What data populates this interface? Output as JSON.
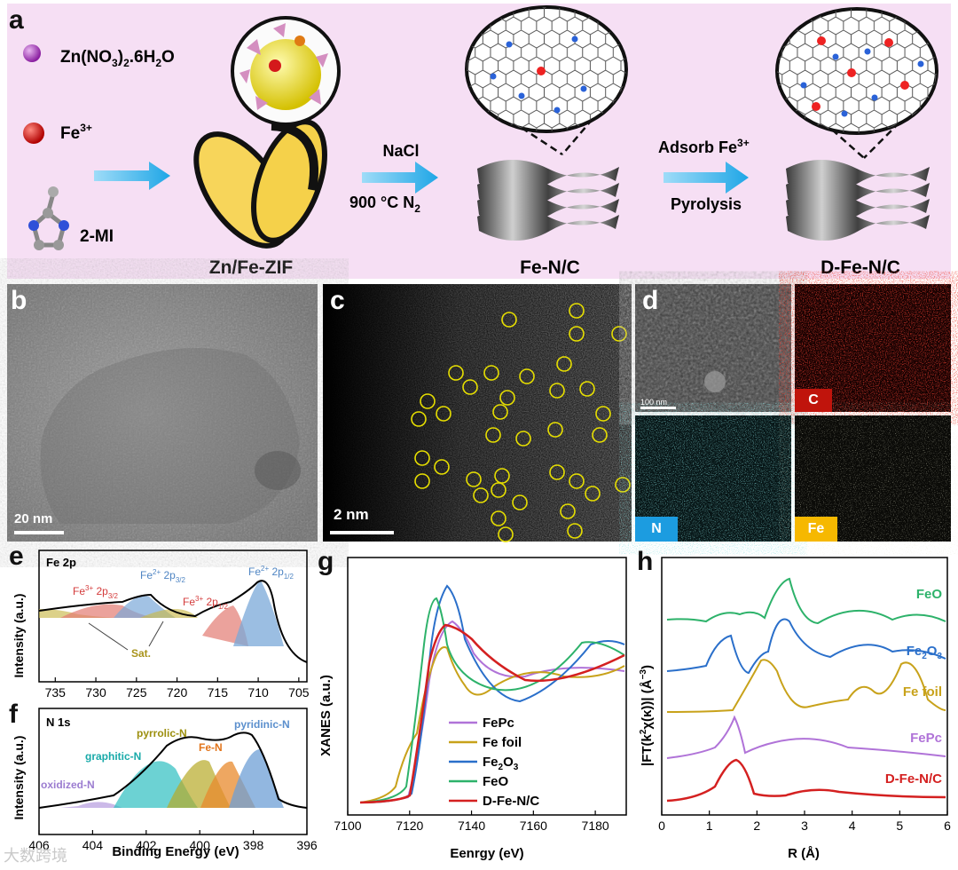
{
  "panel_a": {
    "label": "a",
    "reagents": [
      "Zn(NO3)2.6H2O",
      "Fe3+",
      "2-MI"
    ],
    "step1_conditions": [
      "NaCl",
      "900 °C  N2"
    ],
    "step2_conditions": [
      "Adsorb Fe3+",
      "Pyrolysis"
    ],
    "products": [
      "Zn/Fe-ZIF",
      "Fe-N/C",
      "D-Fe-N/C"
    ]
  },
  "panel_b": {
    "label": "b",
    "scalebar": "20 nm"
  },
  "panel_c": {
    "label": "c",
    "scalebar": "2 nm"
  },
  "panel_d": {
    "label": "d",
    "scalebar": "100 nm",
    "maps": [
      "C",
      "N",
      "Fe"
    ]
  },
  "colors": {
    "bg_a": "#f6dff4",
    "arrow": "#22a9e8",
    "C": "#c0140c",
    "N": "#1c9ce0",
    "Fe": "#f6b800"
  },
  "chart_data": [
    {
      "panel": "e",
      "type": "line",
      "title": "Fe 2p",
      "xlabel": "",
      "ylabel": "Intensity (a.u.)",
      "x_ticks": [
        735,
        730,
        725,
        720,
        715,
        710,
        705
      ],
      "xlim": [
        737,
        704
      ],
      "peaks": [
        "Fe3+ 2p3/2",
        "Fe2+ 2p3/2",
        "Fe3+ 2p1/2",
        "Fe2+ 2p1/2",
        "Sat."
      ]
    },
    {
      "panel": "f",
      "type": "line",
      "title": "N 1s",
      "xlabel": "Binding Energy (eV)",
      "ylabel": "Intensity (a.u.)",
      "x_ticks": [
        406,
        404,
        402,
        400,
        398,
        396
      ],
      "xlim": [
        406,
        396
      ],
      "peaks": [
        "oxidized-N",
        "graphitic-N",
        "pyrrolic-N",
        "Fe-N",
        "pyridinic-N"
      ]
    },
    {
      "panel": "g",
      "type": "line",
      "title": "",
      "xlabel": "Eenrgy (eV)",
      "ylabel": "XANES (a.u.)",
      "x_ticks": [
        7100,
        7120,
        7140,
        7160,
        7180
      ],
      "xlim": [
        7100,
        7190
      ],
      "series": [
        {
          "name": "FePc",
          "color": "#b073d8"
        },
        {
          "name": "Fe foil",
          "color": "#c8a21a"
        },
        {
          "name": "Fe2O3",
          "color": "#2a6fca"
        },
        {
          "name": "FeO",
          "color": "#2db26a"
        },
        {
          "name": "D-Fe-N/C",
          "color": "#d42020"
        }
      ]
    },
    {
      "panel": "h",
      "type": "line",
      "title": "",
      "xlabel": "R (Å)",
      "ylabel": "|FT(k2χ(κ))| (Å−3)",
      "x_ticks": [
        0,
        1,
        2,
        3,
        4,
        5,
        6
      ],
      "xlim": [
        0,
        6
      ],
      "series": [
        {
          "name": "FeO",
          "color": "#2db26a"
        },
        {
          "name": "Fe2O3",
          "color": "#2a6fca"
        },
        {
          "name": "Fe foil",
          "color": "#c8a21a"
        },
        {
          "name": "FePc",
          "color": "#b073d8"
        },
        {
          "name": "D-Fe-N/C",
          "color": "#d42020"
        }
      ]
    }
  ],
  "watermark": "大数跨境"
}
